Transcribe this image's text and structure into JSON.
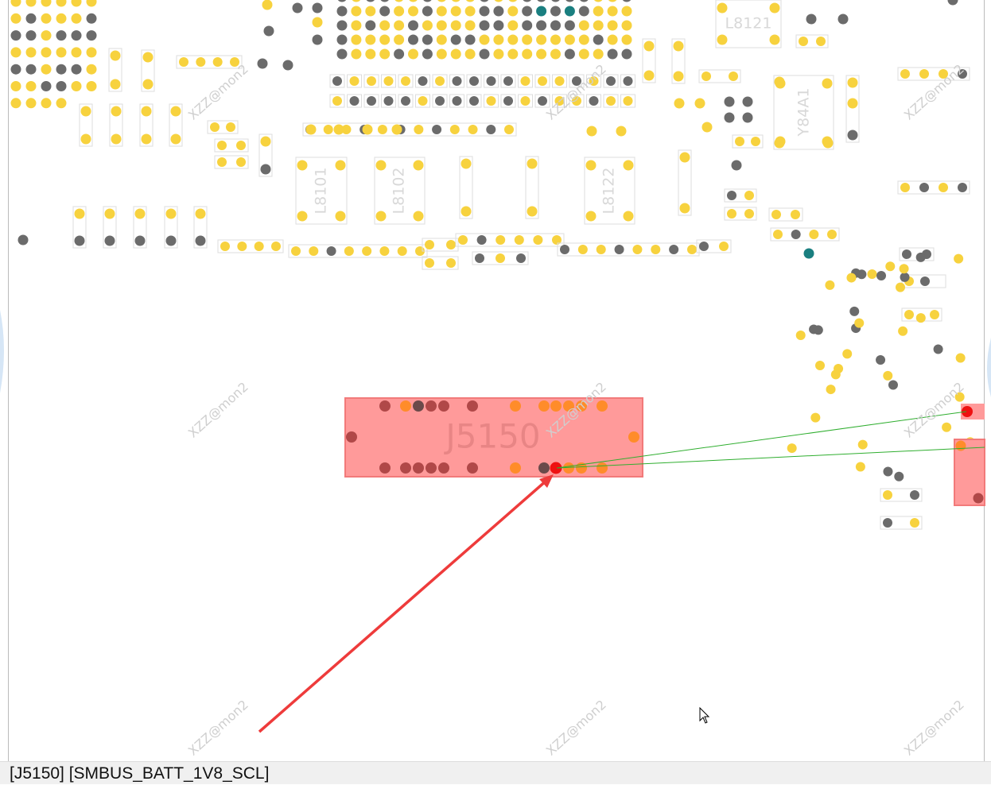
{
  "status_bar": "[J5150] [SMBUS_BATT_1V8_SCL]",
  "watermark": "XZZ@mon2",
  "components": [
    "L8121",
    "Y84A1",
    "L8101",
    "L8102",
    "L8122",
    "J5150"
  ]
}
